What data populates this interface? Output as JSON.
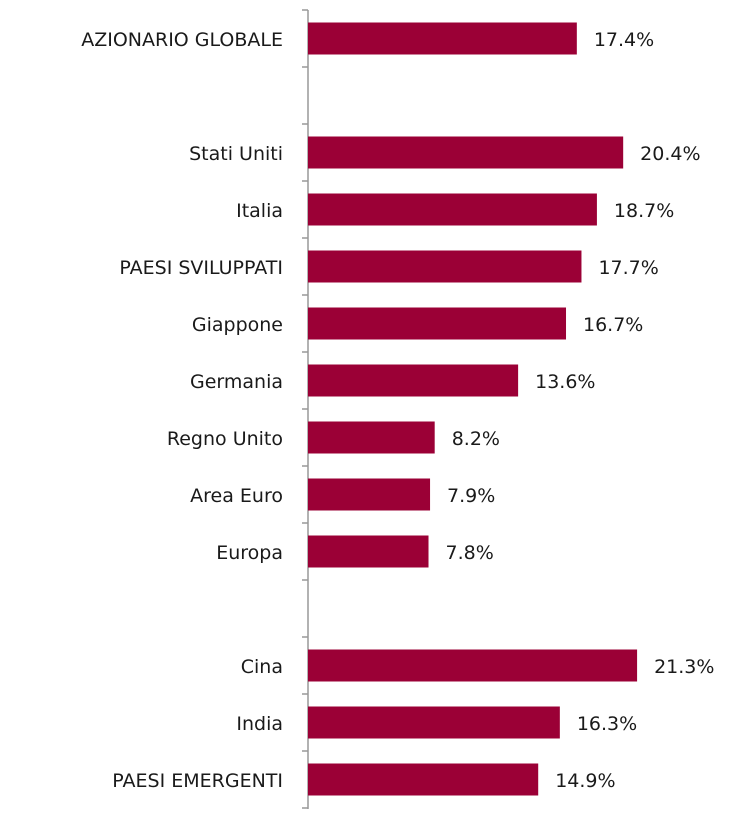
{
  "chart_data": {
    "type": "barh",
    "categories": [
      "AZIONARIO GLOBALE",
      null,
      "Stati Uniti",
      "Italia",
      "PAESI SVILUPPATI",
      "Giappone",
      "Germania",
      "Regno Unito",
      "Area Euro",
      "Europa",
      null,
      "Cina",
      "India",
      "PAESI EMERGENTI"
    ],
    "values": [
      17.4,
      null,
      20.4,
      18.7,
      17.7,
      16.7,
      13.6,
      8.2,
      7.9,
      7.8,
      null,
      21.3,
      16.3,
      14.9
    ],
    "value_labels": [
      "17.4%",
      null,
      "20.4%",
      "18.7%",
      "17.7%",
      "16.7%",
      "13.6%",
      "8.2%",
      "7.9%",
      "7.8%",
      null,
      "21.3%",
      "16.3%",
      "14.9%"
    ],
    "color": "#9b0036"
  }
}
